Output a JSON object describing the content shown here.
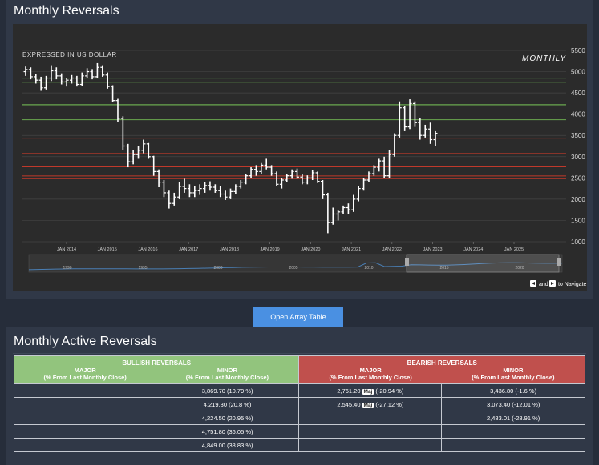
{
  "page": {
    "top_title": "Monthly Reversals",
    "bottom_title": "Monthly Active Reversals",
    "open_button_label": "Open Array Table"
  },
  "chart_annotations": {
    "currency_note": "EXPRESSED IN US DOLLAR",
    "period_label": "MONTHLY",
    "navigator_hint_and": "and",
    "navigator_hint_tail": "to Navigate"
  },
  "chart_data": {
    "type": "ohlc",
    "ylim": [
      1000,
      5500
    ],
    "y_ticks": [
      "1000",
      "1500",
      "2000",
      "2500",
      "3000",
      "3500",
      "4000",
      "4500",
      "5000",
      "5500"
    ],
    "x_ticks": [
      "JAN 2014",
      "JAN 2015",
      "JAN 2016",
      "JAN 2017",
      "JAN 2018",
      "JAN 2019",
      "JAN 2020",
      "JAN 2021",
      "JAN 2022",
      "JAN 2023",
      "JAN 2024",
      "JAN 2025"
    ],
    "grid": true,
    "navigator_ticks": [
      "1990",
      "1995",
      "2000",
      "2005",
      "2010",
      "2015",
      "2020"
    ],
    "bullish_levels": [
      3869.7,
      4219.3,
      4224.5,
      4751.8,
      4849.0
    ],
    "bearish_levels": [
      3436.8,
      3073.4,
      2761.2,
      2545.4,
      2483.01
    ],
    "ohlc": [
      [
        5000,
        5120,
        4900,
        5050
      ],
      [
        5050,
        5100,
        4820,
        4880
      ],
      [
        4880,
        4950,
        4720,
        4800
      ],
      [
        4800,
        4880,
        4550,
        4620
      ],
      [
        4620,
        4900,
        4580,
        4850
      ],
      [
        4850,
        5150,
        4780,
        5020
      ],
      [
        5020,
        5100,
        4820,
        4900
      ],
      [
        4900,
        4960,
        4700,
        4760
      ],
      [
        4760,
        4850,
        4650,
        4800
      ],
      [
        4800,
        4920,
        4720,
        4850
      ],
      [
        4850,
        4900,
        4650,
        4700
      ],
      [
        4700,
        4980,
        4660,
        4900
      ],
      [
        4900,
        5080,
        4850,
        5000
      ],
      [
        5000,
        5060,
        4820,
        4880
      ],
      [
        4880,
        5200,
        4850,
        5100
      ],
      [
        5100,
        5150,
        4880,
        4920
      ],
      [
        4920,
        4980,
        4600,
        4650
      ],
      [
        4650,
        4680,
        4280,
        4320
      ],
      [
        4320,
        4360,
        3820,
        3900
      ],
      [
        3900,
        3950,
        3150,
        3250
      ],
      [
        3250,
        3300,
        2750,
        2880
      ],
      [
        2880,
        3150,
        2820,
        3050
      ],
      [
        3050,
        3250,
        2950,
        3150
      ],
      [
        3150,
        3400,
        3080,
        3300
      ],
      [
        3300,
        3320,
        2950,
        3000
      ],
      [
        3000,
        3020,
        2550,
        2650
      ],
      [
        2650,
        2700,
        2280,
        2400
      ],
      [
        2400,
        2450,
        2050,
        2150
      ],
      [
        2150,
        2200,
        1780,
        1900
      ],
      [
        1900,
        2150,
        1850,
        2050
      ],
      [
        2050,
        2400,
        2000,
        2300
      ],
      [
        2300,
        2480,
        2150,
        2250
      ],
      [
        2250,
        2350,
        2050,
        2150
      ],
      [
        2150,
        2300,
        2050,
        2200
      ],
      [
        2200,
        2350,
        2100,
        2250
      ],
      [
        2250,
        2400,
        2150,
        2320
      ],
      [
        2320,
        2420,
        2200,
        2280
      ],
      [
        2280,
        2350,
        2150,
        2200
      ],
      [
        2200,
        2300,
        2050,
        2120
      ],
      [
        2120,
        2200,
        1980,
        2050
      ],
      [
        2050,
        2250,
        2000,
        2180
      ],
      [
        2180,
        2350,
        2120,
        2300
      ],
      [
        2300,
        2450,
        2250,
        2400
      ],
      [
        2400,
        2600,
        2350,
        2550
      ],
      [
        2550,
        2750,
        2500,
        2700
      ],
      [
        2700,
        2800,
        2550,
        2650
      ],
      [
        2650,
        2850,
        2600,
        2800
      ],
      [
        2800,
        2950,
        2700,
        2750
      ],
      [
        2750,
        2800,
        2550,
        2600
      ],
      [
        2600,
        2650,
        2300,
        2350
      ],
      [
        2350,
        2500,
        2250,
        2450
      ],
      [
        2450,
        2600,
        2400,
        2550
      ],
      [
        2550,
        2700,
        2480,
        2650
      ],
      [
        2650,
        2720,
        2480,
        2520
      ],
      [
        2520,
        2580,
        2350,
        2400
      ],
      [
        2400,
        2560,
        2350,
        2500
      ],
      [
        2500,
        2680,
        2450,
        2620
      ],
      [
        2620,
        2650,
        2380,
        2420
      ],
      [
        2420,
        2450,
        2000,
        2100
      ],
      [
        2100,
        2150,
        1200,
        1450
      ],
      [
        1450,
        1800,
        1400,
        1650
      ],
      [
        1650,
        1750,
        1500,
        1700
      ],
      [
        1700,
        1850,
        1650,
        1800
      ],
      [
        1800,
        1900,
        1650,
        1750
      ],
      [
        1750,
        2100,
        1700,
        2000
      ],
      [
        2000,
        2300,
        1950,
        2250
      ],
      [
        2250,
        2500,
        2200,
        2450
      ],
      [
        2450,
        2650,
        2400,
        2600
      ],
      [
        2600,
        2800,
        2550,
        2750
      ],
      [
        2750,
        2950,
        2650,
        2900
      ],
      [
        2900,
        3000,
        2500,
        2550
      ],
      [
        2550,
        3150,
        2500,
        3050
      ],
      [
        3050,
        3550,
        3000,
        3500
      ],
      [
        3500,
        4300,
        3450,
        4150
      ],
      [
        4150,
        4200,
        3600,
        3700
      ],
      [
        3700,
        4350,
        3650,
        4250
      ],
      [
        4250,
        4300,
        3700,
        3800
      ],
      [
        3800,
        3900,
        3400,
        3500
      ],
      [
        3500,
        3750,
        3450,
        3650
      ],
      [
        3650,
        3800,
        3300,
        3400
      ],
      [
        3400,
        3600,
        3250,
        3550
      ]
    ]
  },
  "table": {
    "bullish_header": "BULLISH REVERSALS",
    "bearish_header": "BEARISH REVERSALS",
    "major_label": "MAJOR",
    "minor_label": "MINOR",
    "pct_note": "(% From Last Monthly Close)",
    "maj_badge": "Maj",
    "rows": [
      {
        "bull_major": "",
        "bull_minor": "3,869.70 (10.79 %)",
        "bear_major_price": "2,761.20",
        "bear_major_pct": "(-20.94 %)",
        "bear_minor": "3,436.80 (-1.6 %)"
      },
      {
        "bull_major": "",
        "bull_minor": "4,219.30 (20.8 %)",
        "bear_major_price": "2,545.40",
        "bear_major_pct": "(-27.12 %)",
        "bear_minor": "3,073.40 (-12.01 %)"
      },
      {
        "bull_major": "",
        "bull_minor": "4,224.50 (20.95 %)",
        "bear_major_price": "",
        "bear_major_pct": "",
        "bear_minor": "2,483.01 (-28.91 %)"
      },
      {
        "bull_major": "",
        "bull_minor": "4,751.80 (36.05 %)",
        "bear_major_price": "",
        "bear_major_pct": "",
        "bear_minor": ""
      },
      {
        "bull_major": "",
        "bull_minor": "4,849.00 (38.83 %)",
        "bear_major_price": "",
        "bear_major_pct": "",
        "bear_minor": ""
      }
    ]
  }
}
